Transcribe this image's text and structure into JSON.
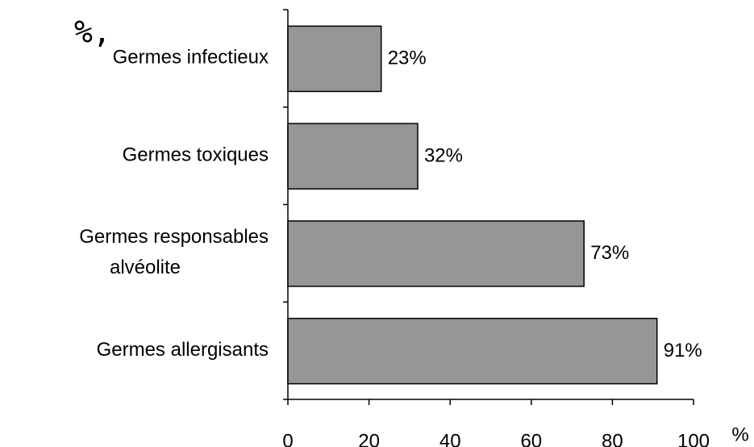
{
  "fragment": "%,",
  "chart_data": {
    "type": "barh",
    "categories": [
      "Germes infectieux",
      "Germes toxiques",
      "Germes responsables\nalvéolite",
      "Germes allergisants"
    ],
    "values": [
      23,
      32,
      73,
      91
    ],
    "value_labels": [
      "23%",
      "32%",
      "73%",
      "91%"
    ],
    "color": "#969696",
    "xlabel": "%",
    "xlim": [
      0,
      100
    ],
    "xticks": [
      0,
      20,
      40,
      60,
      80,
      100
    ]
  }
}
